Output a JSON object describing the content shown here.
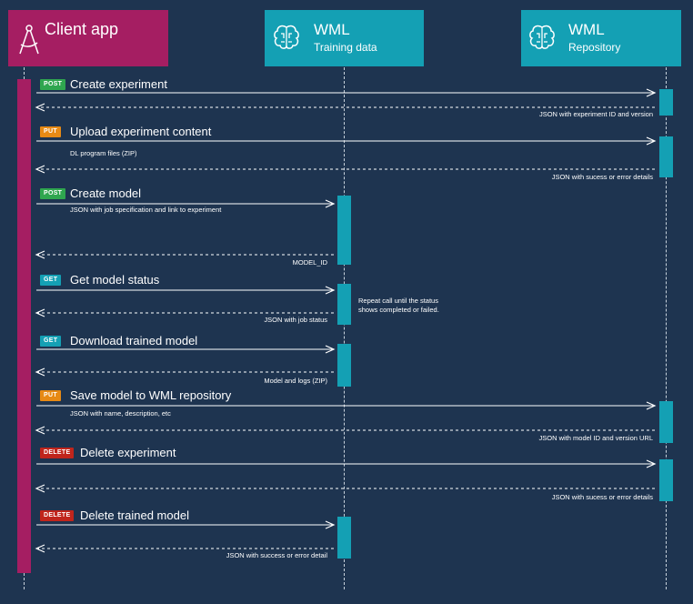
{
  "colors": {
    "background": "#1e3450",
    "client": "#a51e62",
    "wml": "#14a0b4",
    "post": "#2fa64f",
    "put": "#e78a15",
    "get": "#14a0b4",
    "delete": "#c0251c",
    "line": "#ffffff"
  },
  "participants": {
    "client": {
      "title": "Client app",
      "icon": "compass-icon"
    },
    "training": {
      "title": "WML",
      "subtitle": "Training data",
      "icon": "brain-icon"
    },
    "repository": {
      "title": "WML",
      "subtitle": "Repository",
      "icon": "brain-icon"
    }
  },
  "messages": [
    {
      "method": "POST",
      "label": "Create experiment",
      "target": "repository",
      "request_detail": "",
      "response": "JSON with experiment ID and version"
    },
    {
      "method": "PUT",
      "label": "Upload experiment content",
      "target": "repository",
      "request_detail": "DL program files (ZIP)",
      "response": "JSON with sucess or error details"
    },
    {
      "method": "POST",
      "label": "Create model",
      "target": "training",
      "request_detail": "JSON with job specification and link to experiment",
      "response": "MODEL_ID"
    },
    {
      "method": "GET",
      "label": "Get model status",
      "target": "training",
      "request_detail": "",
      "response": "JSON with job status",
      "note": [
        "Repeat call until the status",
        "shows completed or failed."
      ]
    },
    {
      "method": "GET",
      "label": "Download trained model",
      "target": "training",
      "request_detail": "",
      "response": "Model and logs (ZIP)"
    },
    {
      "method": "PUT",
      "label": "Save model to WML repository",
      "target": "repository",
      "request_detail": "JSON with name, description, etc",
      "response": "JSON with model ID and version URL"
    },
    {
      "method": "DELETE",
      "label": "Delete experiment",
      "target": "repository",
      "request_detail": "",
      "response": "JSON with sucess or error details"
    },
    {
      "method": "DELETE",
      "label": "Delete trained model",
      "target": "training",
      "request_detail": "",
      "response": "JSON with success or error detail"
    }
  ]
}
